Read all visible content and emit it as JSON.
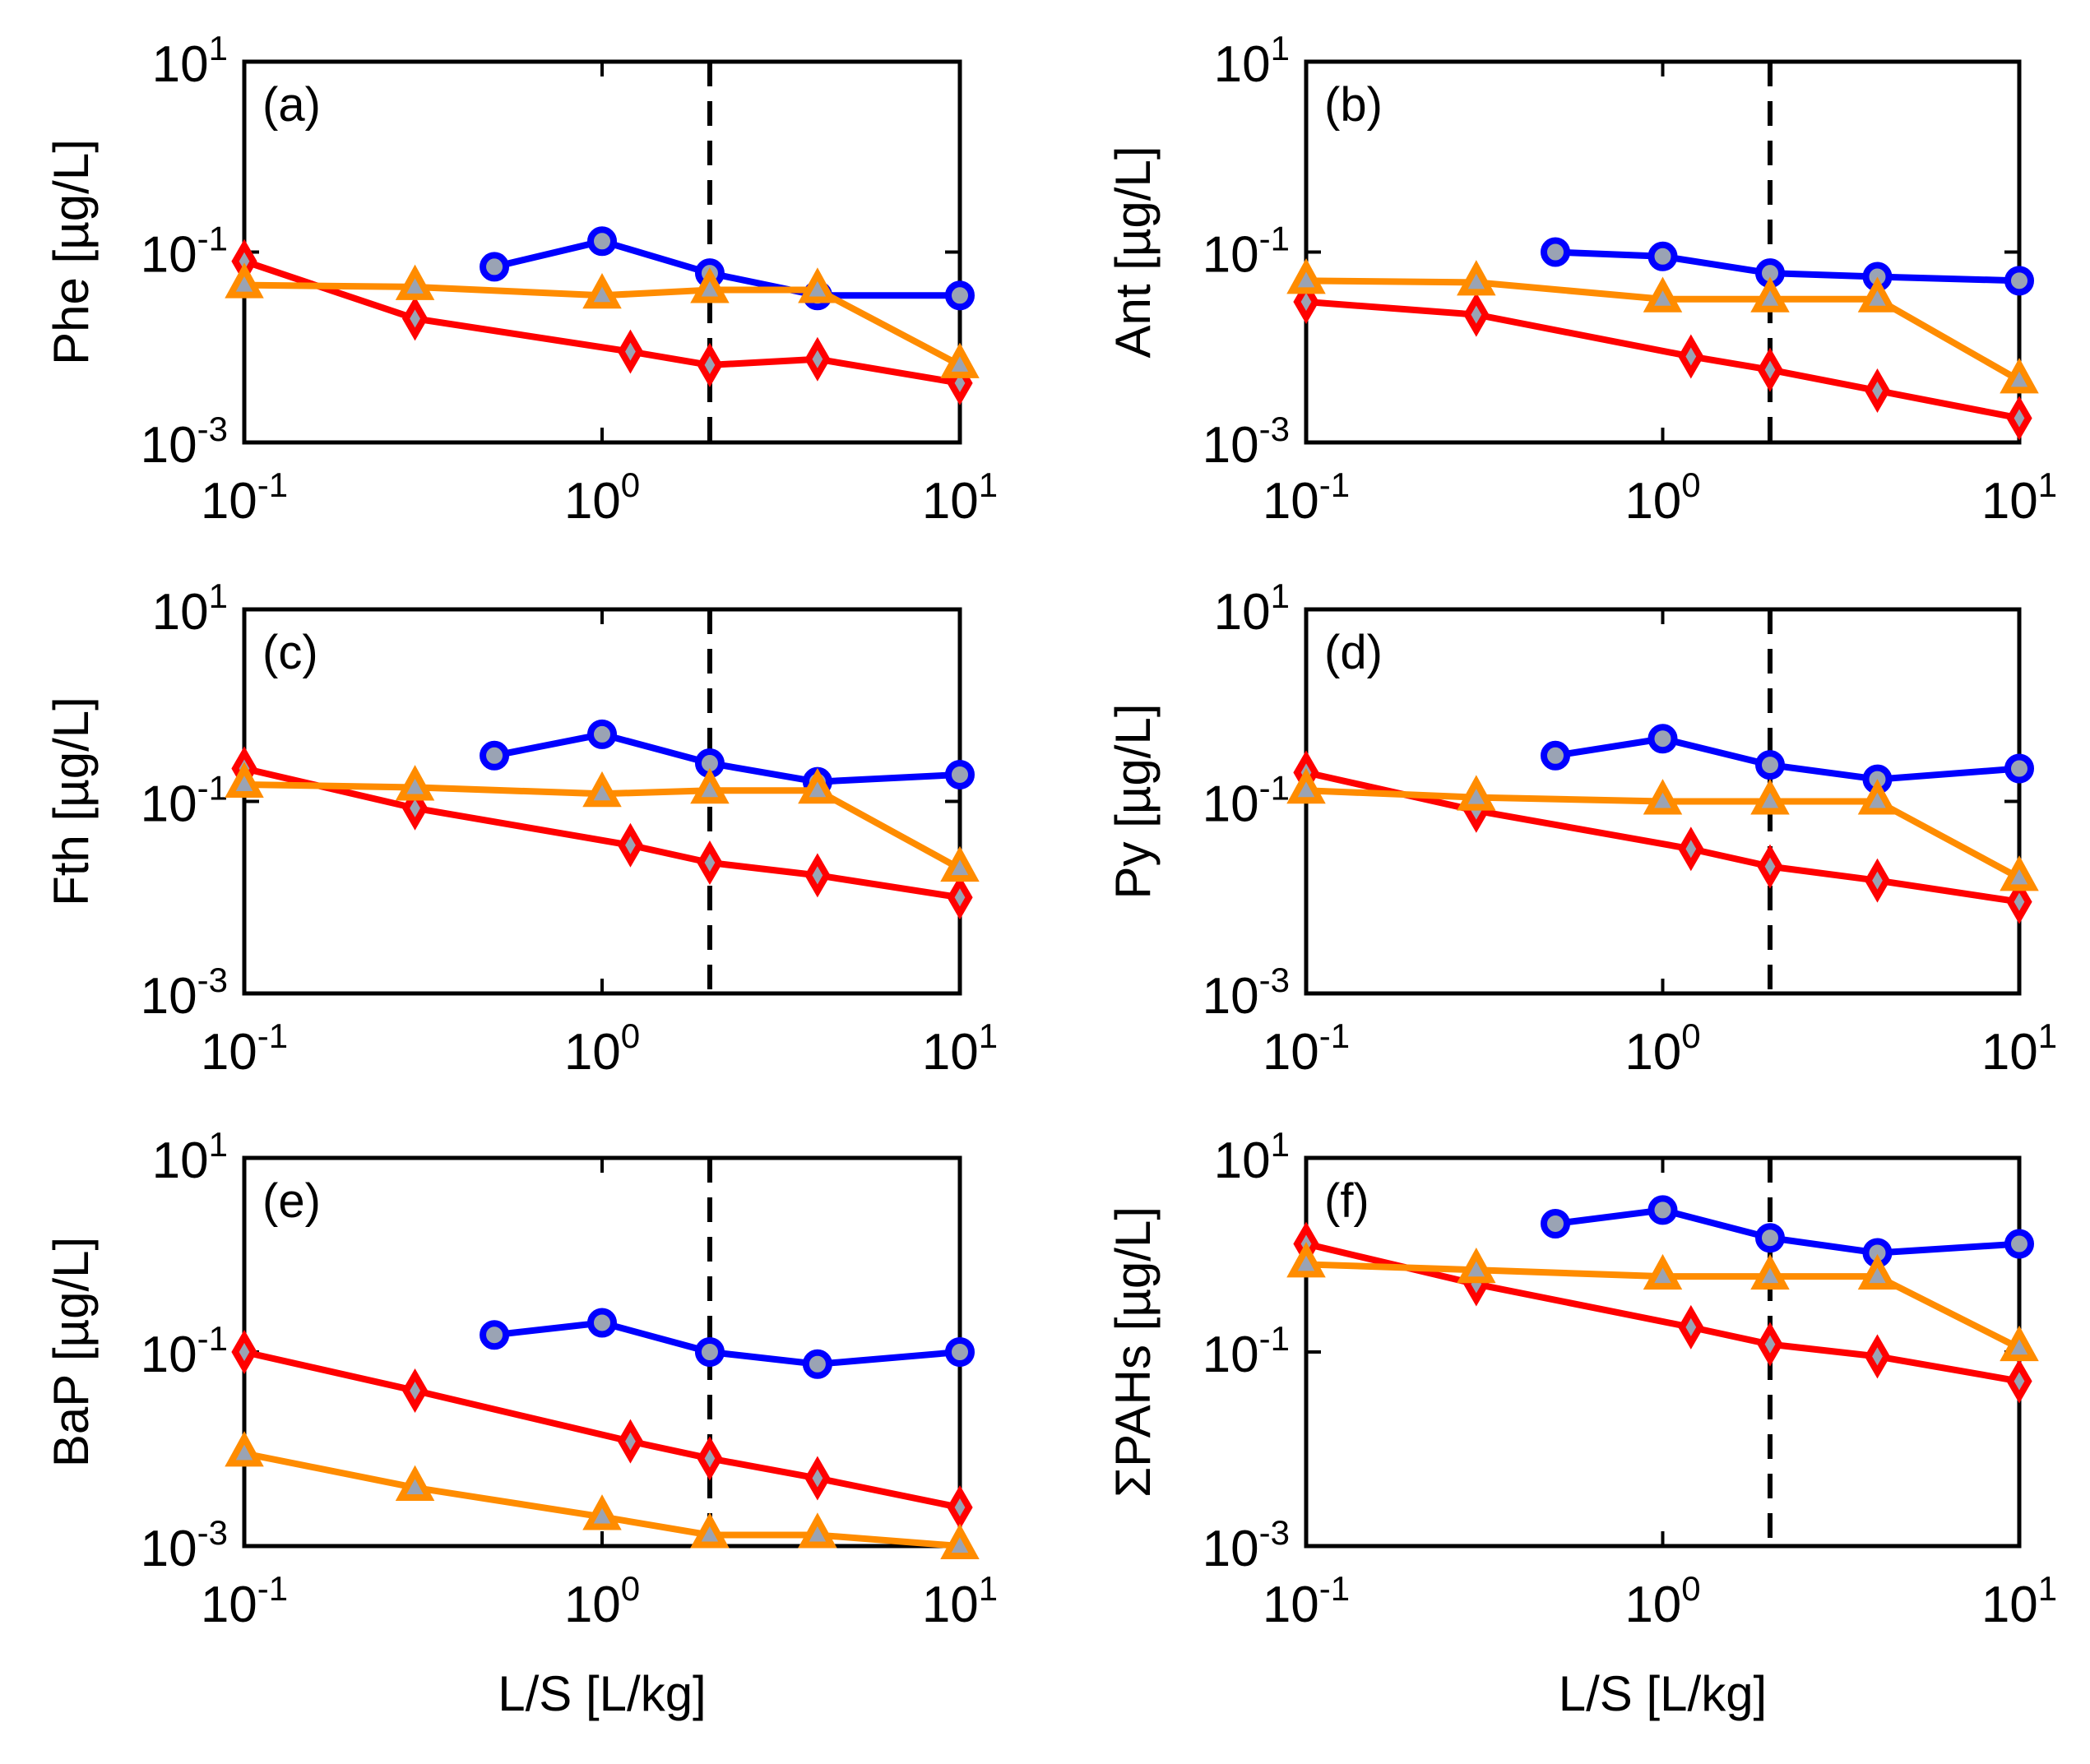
{
  "chart_data": [
    {
      "panel": "(a)",
      "ylabel": "Phe [µg/L]",
      "xlabel": "",
      "type": "line",
      "xscale": "log",
      "yscale": "log",
      "xlim": [
        0.1,
        10
      ],
      "ylim": [
        0.001,
        10
      ],
      "xticks": [
        0.1,
        1,
        10
      ],
      "yticks": [
        0.001,
        0.1,
        10
      ],
      "ref_line_x": 2,
      "series": [
        {
          "name": "circle",
          "marker": "circle",
          "color": "#0000ff",
          "x": [
            0.5,
            1,
            2,
            4,
            10
          ],
          "y": [
            0.07,
            0.13,
            0.06,
            0.035,
            0.035
          ]
        },
        {
          "name": "diamond",
          "marker": "diamond",
          "color": "#ff0000",
          "x": [
            0.1,
            0.3,
            1.2,
            2,
            4,
            10
          ],
          "y": [
            0.08,
            0.02,
            0.009,
            0.0065,
            0.0075,
            0.0042
          ]
        },
        {
          "name": "triangle",
          "marker": "triangle",
          "color": "#ff8c00",
          "x": [
            0.1,
            0.3,
            1,
            2,
            4,
            10
          ],
          "y": [
            0.045,
            0.043,
            0.035,
            0.04,
            0.04,
            0.0065
          ]
        }
      ]
    },
    {
      "panel": "(b)",
      "ylabel": "Ant [µg/L]",
      "xlabel": "",
      "type": "line",
      "xscale": "log",
      "yscale": "log",
      "xlim": [
        0.1,
        10
      ],
      "ylim": [
        0.001,
        10
      ],
      "xticks": [
        0.1,
        1,
        10
      ],
      "yticks": [
        0.001,
        0.1,
        10
      ],
      "ref_line_x": 2,
      "series": [
        {
          "name": "circle",
          "marker": "circle",
          "color": "#0000ff",
          "x": [
            0.5,
            1,
            2,
            4,
            10
          ],
          "y": [
            0.1,
            0.09,
            0.06,
            0.055,
            0.05
          ]
        },
        {
          "name": "diamond",
          "marker": "diamond",
          "color": "#ff0000",
          "x": [
            0.1,
            0.3,
            1.2,
            2,
            4,
            10
          ],
          "y": [
            0.03,
            0.022,
            0.008,
            0.0058,
            0.0035,
            0.0018
          ]
        },
        {
          "name": "triangle",
          "marker": "triangle",
          "color": "#ff8c00",
          "x": [
            0.1,
            0.3,
            1,
            2,
            4,
            10
          ],
          "y": [
            0.05,
            0.048,
            0.032,
            0.032,
            0.032,
            0.0045
          ]
        }
      ]
    },
    {
      "panel": "(c)",
      "ylabel": "Fth [µg/L]",
      "xlabel": "",
      "type": "line",
      "xscale": "log",
      "yscale": "log",
      "xlim": [
        0.1,
        10
      ],
      "ylim": [
        0.001,
        10
      ],
      "xticks": [
        0.1,
        1,
        10
      ],
      "yticks": [
        0.001,
        0.1,
        10
      ],
      "ref_line_x": 2,
      "series": [
        {
          "name": "circle",
          "marker": "circle",
          "color": "#0000ff",
          "x": [
            0.5,
            1,
            2,
            4,
            10
          ],
          "y": [
            0.3,
            0.5,
            0.25,
            0.16,
            0.19
          ]
        },
        {
          "name": "diamond",
          "marker": "diamond",
          "color": "#ff0000",
          "x": [
            0.1,
            0.3,
            1.2,
            2,
            4,
            10
          ],
          "y": [
            0.22,
            0.085,
            0.035,
            0.023,
            0.017,
            0.01
          ]
        },
        {
          "name": "triangle",
          "marker": "triangle",
          "color": "#ff8c00",
          "x": [
            0.1,
            0.3,
            1,
            2,
            4,
            10
          ],
          "y": [
            0.15,
            0.14,
            0.12,
            0.13,
            0.13,
            0.02
          ]
        }
      ]
    },
    {
      "panel": "(d)",
      "ylabel": "Py [µg/L]",
      "xlabel": "",
      "type": "line",
      "xscale": "log",
      "yscale": "log",
      "xlim": [
        0.1,
        10
      ],
      "ylim": [
        0.001,
        10
      ],
      "xticks": [
        0.1,
        1,
        10
      ],
      "yticks": [
        0.001,
        0.1,
        10
      ],
      "ref_line_x": 2,
      "series": [
        {
          "name": "circle",
          "marker": "circle",
          "color": "#0000ff",
          "x": [
            0.5,
            1,
            2,
            4,
            10
          ],
          "y": [
            0.3,
            0.45,
            0.24,
            0.17,
            0.22
          ]
        },
        {
          "name": "diamond",
          "marker": "diamond",
          "color": "#ff0000",
          "x": [
            0.1,
            0.3,
            1.2,
            2,
            4,
            10
          ],
          "y": [
            0.2,
            0.08,
            0.032,
            0.021,
            0.015,
            0.009
          ]
        },
        {
          "name": "triangle",
          "marker": "triangle",
          "color": "#ff8c00",
          "x": [
            0.1,
            0.3,
            1,
            2,
            4,
            10
          ],
          "y": [
            0.13,
            0.11,
            0.1,
            0.1,
            0.1,
            0.016
          ]
        }
      ]
    },
    {
      "panel": "(e)",
      "ylabel": "BaP [µg/L]",
      "xlabel": "L/S [L/kg]",
      "type": "line",
      "xscale": "log",
      "yscale": "log",
      "xlim": [
        0.1,
        10
      ],
      "ylim": [
        0.001,
        10
      ],
      "xticks": [
        0.1,
        1,
        10
      ],
      "yticks": [
        0.001,
        0.1,
        10
      ],
      "ref_line_x": 2,
      "series": [
        {
          "name": "circle",
          "marker": "circle",
          "color": "#0000ff",
          "x": [
            0.5,
            1,
            2,
            4,
            10
          ],
          "y": [
            0.15,
            0.2,
            0.1,
            0.075,
            0.1
          ]
        },
        {
          "name": "diamond",
          "marker": "diamond",
          "color": "#ff0000",
          "x": [
            0.1,
            0.3,
            1.2,
            2,
            4,
            10
          ],
          "y": [
            0.1,
            0.04,
            0.012,
            0.008,
            0.005,
            0.0025
          ]
        },
        {
          "name": "triangle",
          "marker": "triangle",
          "color": "#ff8c00",
          "x": [
            0.1,
            0.3,
            1,
            2,
            4,
            10
          ],
          "y": [
            0.009,
            0.004,
            0.002,
            0.0013,
            0.0013,
            0.001
          ]
        }
      ]
    },
    {
      "panel": "(f)",
      "ylabel": "ΣPAHs [µg/L]",
      "xlabel": "L/S [L/kg]",
      "type": "line",
      "xscale": "log",
      "yscale": "log",
      "xlim": [
        0.1,
        10
      ],
      "ylim": [
        0.001,
        10
      ],
      "xticks": [
        0.1,
        1,
        10
      ],
      "yticks": [
        0.001,
        0.1,
        10
      ],
      "ref_line_x": 2,
      "series": [
        {
          "name": "circle",
          "marker": "circle",
          "color": "#0000ff",
          "x": [
            0.5,
            1,
            2,
            4,
            10
          ],
          "y": [
            2.1,
            2.9,
            1.5,
            1.05,
            1.3
          ]
        },
        {
          "name": "diamond",
          "marker": "diamond",
          "color": "#ff0000",
          "x": [
            0.1,
            0.3,
            1.2,
            2,
            4,
            10
          ],
          "y": [
            1.3,
            0.5,
            0.18,
            0.12,
            0.09,
            0.05
          ]
        },
        {
          "name": "triangle",
          "marker": "triangle",
          "color": "#ff8c00",
          "x": [
            0.1,
            0.3,
            1,
            2,
            4,
            10
          ],
          "y": [
            0.8,
            0.7,
            0.6,
            0.6,
            0.6,
            0.11
          ]
        }
      ]
    }
  ]
}
